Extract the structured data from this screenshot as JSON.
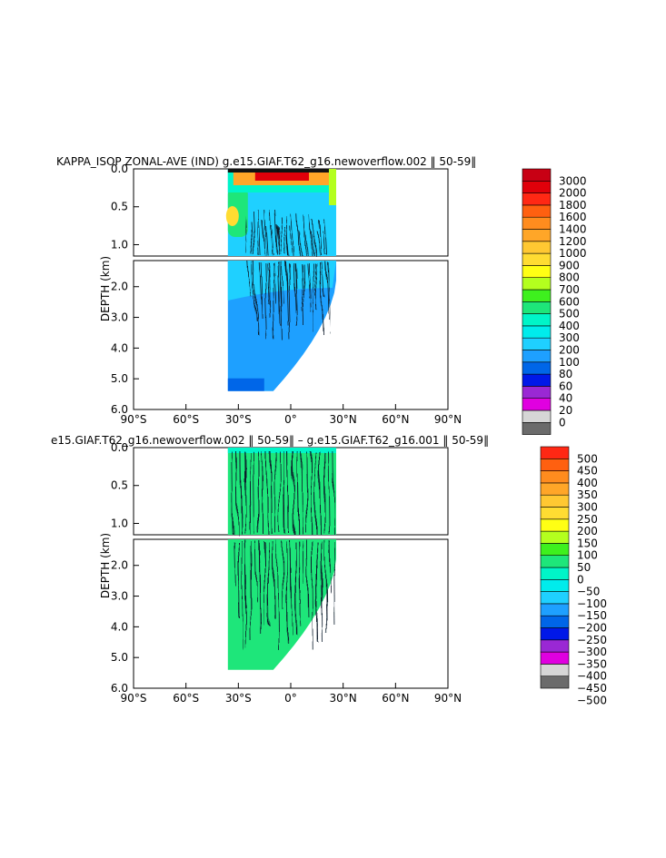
{
  "chart_data": [
    {
      "type": "heatmap",
      "title": "KAPPA_ISOP ZONAL-AVE (IND) g.e15.GIAF.T62_g16.newoverflow.002 ‖ 50-59‖",
      "xlabel": "",
      "ylabel": "DEPTH (km)",
      "x_ticks": [
        "90°S",
        "60°S",
        "30°S",
        "0°",
        "30°N",
        "60°N",
        "90°N"
      ],
      "xlim": [
        -90,
        90
      ],
      "upper_panel": {
        "ylim": [
          0,
          1.15
        ],
        "y_ticks": [
          "0.0",
          "0.5",
          "1.0"
        ],
        "y_values": [
          0,
          0.5,
          1.0
        ]
      },
      "lower_panel": {
        "ylim": [
          1.15,
          6.0
        ],
        "y_ticks": [
          "2.0",
          "3.0",
          "4.0",
          "5.0",
          "6.0"
        ],
        "y_values": [
          2,
          3,
          4,
          5,
          6
        ]
      },
      "colorbar": {
        "labels": [
          "0",
          "20",
          "40",
          "60",
          "80",
          "100",
          "200",
          "300",
          "400",
          "500",
          "600",
          "700",
          "800",
          "900",
          "1000",
          "1200",
          "1400",
          "1600",
          "1800",
          "2000",
          "3000"
        ],
        "colors": [
          "#6b6b6b",
          "#d6d6d6",
          "#e000e0",
          "#9a28d4",
          "#0018e8",
          "#0066e8",
          "#1ea0ff",
          "#1fd0ff",
          "#00ecec",
          "#00f5c8",
          "#1ee67a",
          "#3ef01e",
          "#b4ff1e",
          "#ffff14",
          "#ffdc32",
          "#ffc832",
          "#ffa628",
          "#ff8c1e",
          "#ff6010",
          "#ff2814",
          "#e0000a",
          "#c80014"
        ]
      },
      "domain_lat": [
        -36,
        26
      ],
      "max_depth_km": 5.4
    },
    {
      "type": "heatmap",
      "title": "e15.GIAF.T62_g16.newoverflow.002 ‖ 50-59‖ – g.e15.GIAF.T62_g16.001 ‖ 50-59‖",
      "xlabel": "",
      "ylabel": "DEPTH (km)",
      "x_ticks": [
        "90°S",
        "60°S",
        "30°S",
        "0°",
        "30°N",
        "60°N",
        "90°N"
      ],
      "xlim": [
        -90,
        90
      ],
      "upper_panel": {
        "ylim": [
          0,
          1.15
        ],
        "y_ticks": [
          "0.0",
          "0.5",
          "1.0"
        ],
        "y_values": [
          0,
          0.5,
          1.0
        ]
      },
      "lower_panel": {
        "ylim": [
          1.15,
          6.0
        ],
        "y_ticks": [
          "2.0",
          "3.0",
          "4.0",
          "5.0",
          "6.0"
        ],
        "y_values": [
          2,
          3,
          4,
          5,
          6
        ]
      },
      "colorbar": {
        "labels": [
          "−500",
          "−450",
          "−400",
          "−350",
          "−300",
          "−250",
          "−200",
          "−150",
          "−100",
          "−50",
          "0",
          "50",
          "100",
          "150",
          "200",
          "250",
          "300",
          "350",
          "400",
          "450",
          "500"
        ],
        "colors": [
          "#6b6b6b",
          "#d6d6d6",
          "#e000e0",
          "#9a28d4",
          "#0018e8",
          "#0066e8",
          "#1ea0ff",
          "#1fd0ff",
          "#00ecec",
          "#00f5c8",
          "#1ee67a",
          "#3ef01e",
          "#b4ff1e",
          "#ffff14",
          "#ffdc32",
          "#ffc832",
          "#ffa628",
          "#ff8c1e",
          "#ff6010",
          "#ff2814"
        ]
      },
      "domain_lat": [
        -36,
        26
      ],
      "max_depth_km": 5.4
    }
  ]
}
